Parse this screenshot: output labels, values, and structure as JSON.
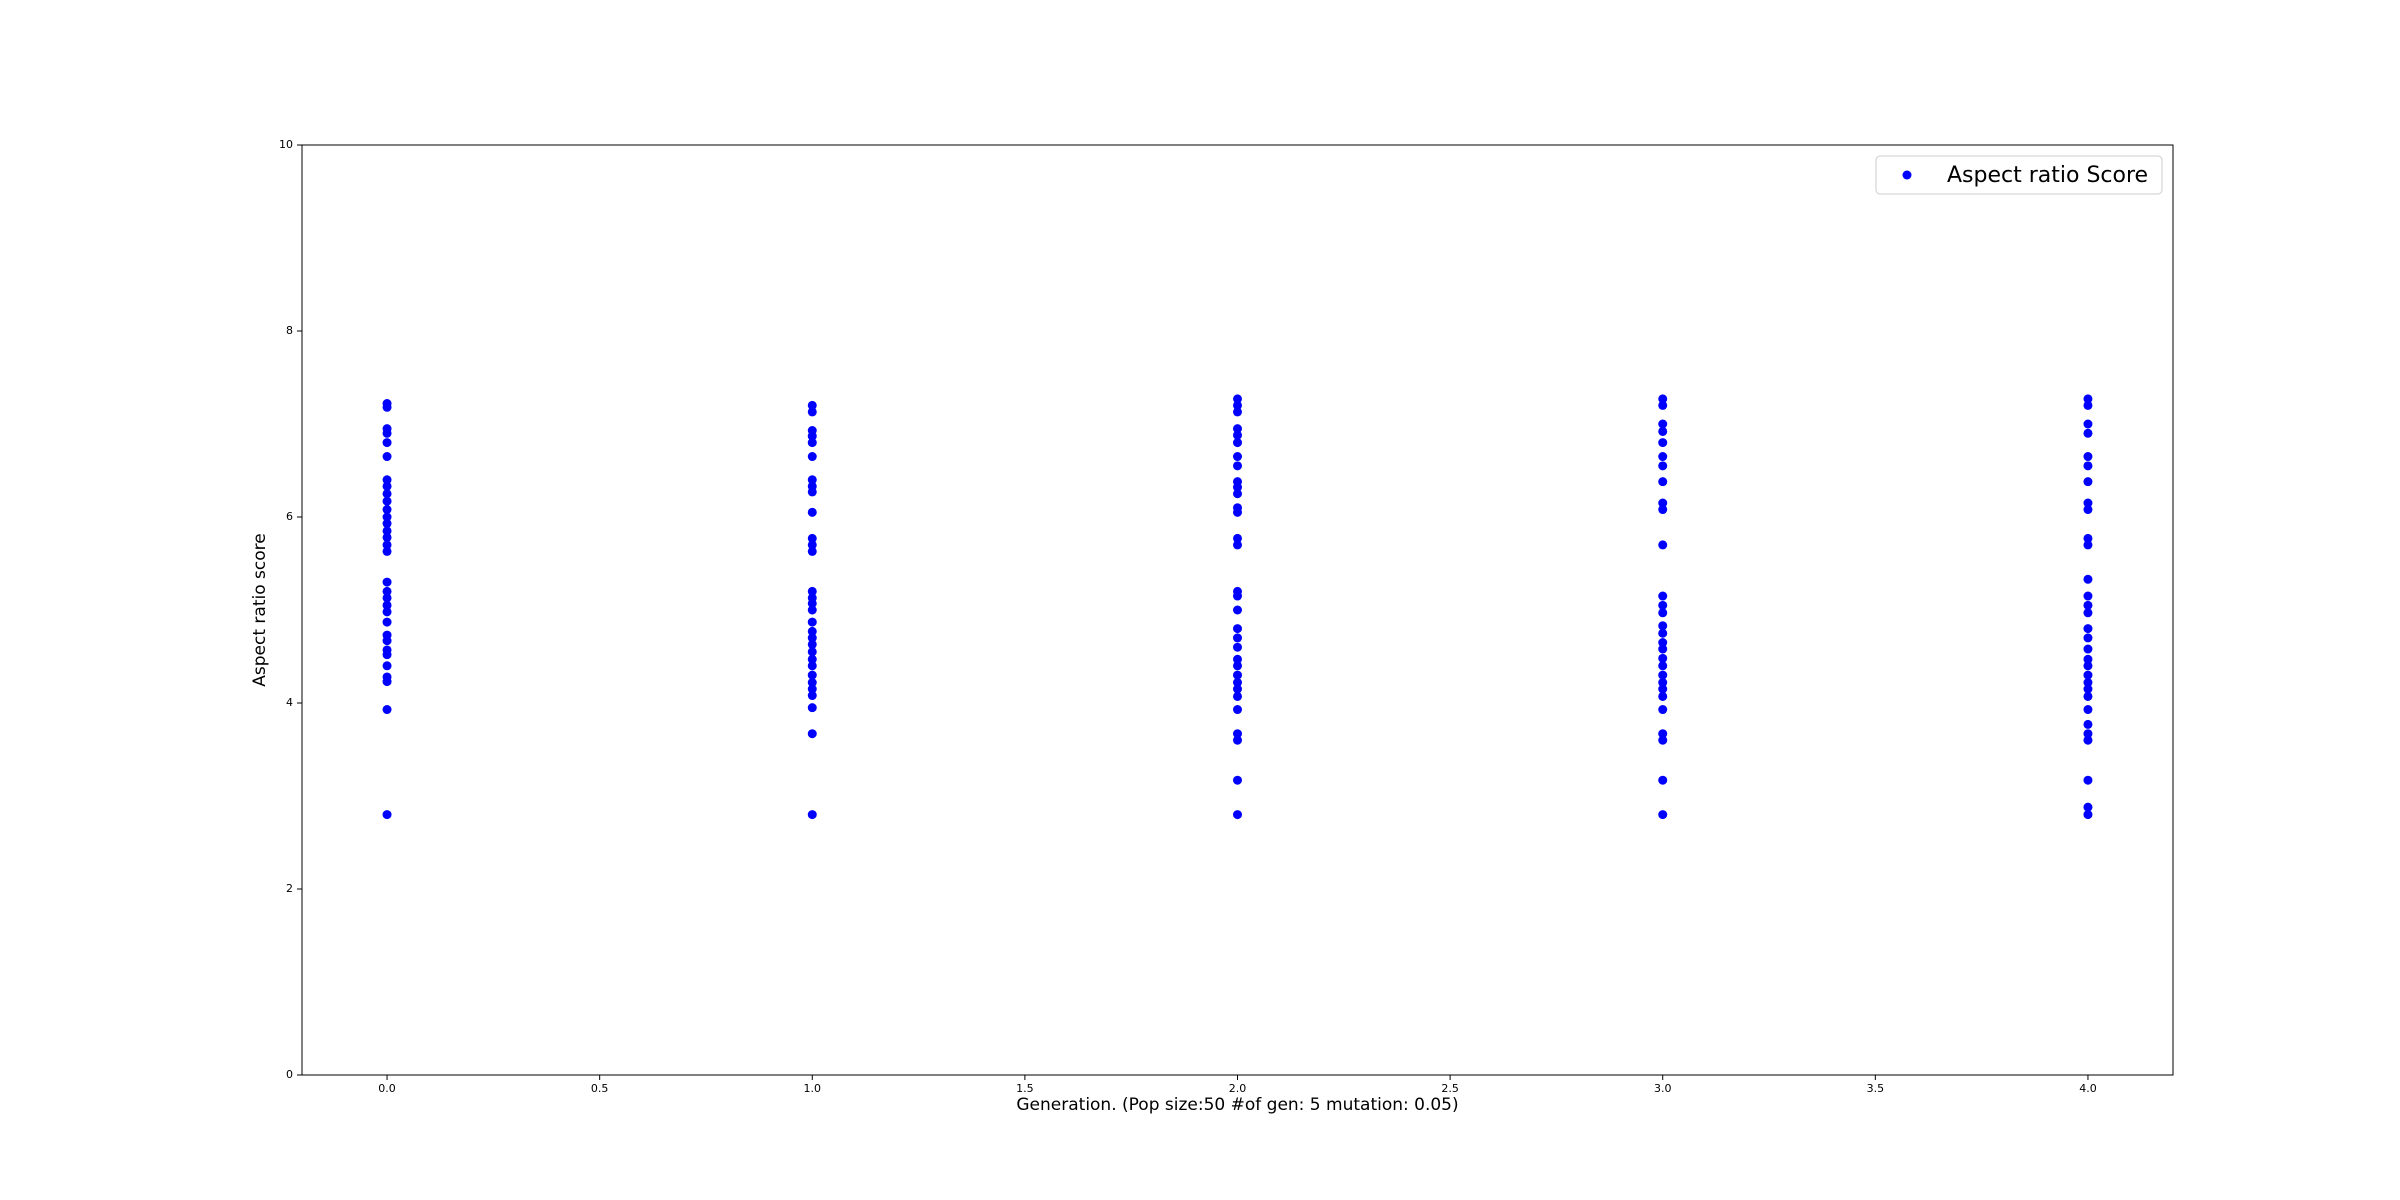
{
  "chart_data": {
    "type": "scatter",
    "title": "",
    "xlabel": "Generation. (Pop size:50 #of gen: 5 mutation: 0.05)",
    "ylabel": "Aspect ratio score",
    "xlim": [
      -0.2,
      4.2
    ],
    "ylim": [
      0,
      10
    ],
    "x_ticks": [
      "0.0",
      "0.5",
      "1.0",
      "1.5",
      "2.0",
      "2.5",
      "3.0",
      "3.5",
      "4.0"
    ],
    "x_tick_values": [
      0,
      0.5,
      1,
      1.5,
      2,
      2.5,
      3,
      3.5,
      4
    ],
    "y_ticks": [
      "0",
      "2",
      "4",
      "6",
      "8",
      "10"
    ],
    "y_tick_values": [
      0,
      2,
      4,
      6,
      8,
      10
    ],
    "grid": false,
    "legend_position": "top-right",
    "series": [
      {
        "name": "Aspect ratio Score",
        "color": "#0000ff",
        "points": [
          [
            0,
            7.22
          ],
          [
            0,
            7.18
          ],
          [
            0,
            6.95
          ],
          [
            0,
            6.9
          ],
          [
            0,
            6.8
          ],
          [
            0,
            6.65
          ],
          [
            0,
            6.4
          ],
          [
            0,
            6.33
          ],
          [
            0,
            6.25
          ],
          [
            0,
            6.17
          ],
          [
            0,
            6.08
          ],
          [
            0,
            6.0
          ],
          [
            0,
            5.93
          ],
          [
            0,
            5.85
          ],
          [
            0,
            5.78
          ],
          [
            0,
            5.7
          ],
          [
            0,
            5.63
          ],
          [
            0,
            5.3
          ],
          [
            0,
            5.2
          ],
          [
            0,
            5.13
          ],
          [
            0,
            5.05
          ],
          [
            0,
            4.98
          ],
          [
            0,
            4.87
          ],
          [
            0,
            4.73
          ],
          [
            0,
            4.67
          ],
          [
            0,
            4.57
          ],
          [
            0,
            4.52
          ],
          [
            0,
            4.4
          ],
          [
            0,
            4.28
          ],
          [
            0,
            4.23
          ],
          [
            0,
            3.93
          ],
          [
            0,
            2.8
          ],
          [
            1,
            7.2
          ],
          [
            1,
            7.13
          ],
          [
            1,
            6.93
          ],
          [
            1,
            6.87
          ],
          [
            1,
            6.8
          ],
          [
            1,
            6.65
          ],
          [
            1,
            6.4
          ],
          [
            1,
            6.33
          ],
          [
            1,
            6.27
          ],
          [
            1,
            6.05
          ],
          [
            1,
            5.77
          ],
          [
            1,
            5.7
          ],
          [
            1,
            5.63
          ],
          [
            1,
            5.2
          ],
          [
            1,
            5.13
          ],
          [
            1,
            5.07
          ],
          [
            1,
            5.0
          ],
          [
            1,
            4.87
          ],
          [
            1,
            4.77
          ],
          [
            1,
            4.7
          ],
          [
            1,
            4.63
          ],
          [
            1,
            4.55
          ],
          [
            1,
            4.47
          ],
          [
            1,
            4.4
          ],
          [
            1,
            4.3
          ],
          [
            1,
            4.22
          ],
          [
            1,
            4.15
          ],
          [
            1,
            4.08
          ],
          [
            1,
            3.95
          ],
          [
            1,
            3.67
          ],
          [
            1,
            2.8
          ],
          [
            2,
            7.27
          ],
          [
            2,
            7.2
          ],
          [
            2,
            7.13
          ],
          [
            2,
            6.95
          ],
          [
            2,
            6.88
          ],
          [
            2,
            6.8
          ],
          [
            2,
            6.65
          ],
          [
            2,
            6.55
          ],
          [
            2,
            6.38
          ],
          [
            2,
            6.32
          ],
          [
            2,
            6.25
          ],
          [
            2,
            6.1
          ],
          [
            2,
            6.05
          ],
          [
            2,
            5.77
          ],
          [
            2,
            5.7
          ],
          [
            2,
            5.2
          ],
          [
            2,
            5.15
          ],
          [
            2,
            5.0
          ],
          [
            2,
            4.8
          ],
          [
            2,
            4.7
          ],
          [
            2,
            4.6
          ],
          [
            2,
            4.47
          ],
          [
            2,
            4.4
          ],
          [
            2,
            4.3
          ],
          [
            2,
            4.22
          ],
          [
            2,
            4.15
          ],
          [
            2,
            4.07
          ],
          [
            2,
            3.93
          ],
          [
            2,
            3.67
          ],
          [
            2,
            3.6
          ],
          [
            2,
            3.17
          ],
          [
            2,
            2.8
          ],
          [
            3,
            7.27
          ],
          [
            3,
            7.2
          ],
          [
            3,
            7.0
          ],
          [
            3,
            6.92
          ],
          [
            3,
            6.8
          ],
          [
            3,
            6.65
          ],
          [
            3,
            6.55
          ],
          [
            3,
            6.38
          ],
          [
            3,
            6.15
          ],
          [
            3,
            6.08
          ],
          [
            3,
            5.7
          ],
          [
            3,
            5.15
          ],
          [
            3,
            5.05
          ],
          [
            3,
            4.97
          ],
          [
            3,
            4.83
          ],
          [
            3,
            4.75
          ],
          [
            3,
            4.65
          ],
          [
            3,
            4.58
          ],
          [
            3,
            4.48
          ],
          [
            3,
            4.4
          ],
          [
            3,
            4.3
          ],
          [
            3,
            4.22
          ],
          [
            3,
            4.15
          ],
          [
            3,
            4.07
          ],
          [
            3,
            3.93
          ],
          [
            3,
            3.67
          ],
          [
            3,
            3.6
          ],
          [
            3,
            3.17
          ],
          [
            3,
            2.8
          ],
          [
            4,
            7.27
          ],
          [
            4,
            7.2
          ],
          [
            4,
            7.0
          ],
          [
            4,
            6.9
          ],
          [
            4,
            6.65
          ],
          [
            4,
            6.55
          ],
          [
            4,
            6.38
          ],
          [
            4,
            6.15
          ],
          [
            4,
            6.08
          ],
          [
            4,
            5.77
          ],
          [
            4,
            5.7
          ],
          [
            4,
            5.33
          ],
          [
            4,
            5.15
          ],
          [
            4,
            5.05
          ],
          [
            4,
            4.97
          ],
          [
            4,
            4.8
          ],
          [
            4,
            4.7
          ],
          [
            4,
            4.58
          ],
          [
            4,
            4.47
          ],
          [
            4,
            4.4
          ],
          [
            4,
            4.3
          ],
          [
            4,
            4.22
          ],
          [
            4,
            4.15
          ],
          [
            4,
            4.07
          ],
          [
            4,
            3.93
          ],
          [
            4,
            3.77
          ],
          [
            4,
            3.67
          ],
          [
            4,
            3.6
          ],
          [
            4,
            3.17
          ],
          [
            4,
            2.88
          ],
          [
            4,
            2.8
          ]
        ]
      }
    ]
  }
}
